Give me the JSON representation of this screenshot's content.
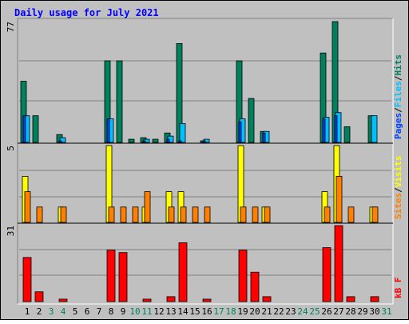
{
  "chart_data": {
    "type": "bar",
    "title": "Daily usage for July 2021",
    "categories": [
      "1",
      "2",
      "3",
      "4",
      "5",
      "6",
      "7",
      "8",
      "9",
      "10",
      "11",
      "12",
      "13",
      "14",
      "15",
      "16",
      "17",
      "18",
      "19",
      "20",
      "21",
      "22",
      "23",
      "24",
      "25",
      "26",
      "27",
      "28",
      "29",
      "30",
      "31"
    ],
    "weekend_days": [
      3,
      4,
      10,
      11,
      17,
      18,
      24,
      25,
      31
    ],
    "panels": [
      {
        "id": "hits-panel",
        "max_label": "77",
        "ymax": 77,
        "right_label": [
          "Pages",
          "/",
          "Files",
          "/",
          "Hits"
        ],
        "series": [
          {
            "name": "Hits",
            "color": "#00805c",
            "values": [
              39,
              17,
              0,
              5,
              0,
              0,
              0,
              52,
              52,
              2,
              3,
              2,
              6,
              63,
              0,
              1,
              0,
              0,
              52,
              28,
              7,
              0,
              0,
              0,
              0,
              57,
              77,
              10,
              0,
              17,
              0
            ]
          },
          {
            "name": "Files",
            "color": "#00c0ff",
            "values": [
              17,
              0,
              0,
              3,
              0,
              0,
              0,
              15,
              0,
              0,
              2,
              0,
              4,
              12,
              0,
              2,
              0,
              0,
              15,
              0,
              7,
              0,
              0,
              0,
              0,
              16,
              19,
              0,
              0,
              17,
              0
            ]
          },
          {
            "name": "Pages",
            "color": "#0040ff",
            "values": [
              17,
              0,
              0,
              1,
              0,
              0,
              0,
              15,
              0,
              0,
              1,
              0,
              2,
              1,
              0,
              1,
              0,
              0,
              13,
              0,
              6,
              0,
              0,
              0,
              0,
              15,
              17,
              0,
              0,
              0,
              0
            ]
          }
        ]
      },
      {
        "id": "sites-panel",
        "max_label": "5",
        "ymax": 5,
        "right_label": [
          "Sites",
          "/",
          "Visits"
        ],
        "series": [
          {
            "name": "Visits",
            "color": "#ffff00",
            "values": [
              3,
              0,
              0,
              1,
              0,
              0,
              0,
              5,
              0,
              0,
              1,
              0,
              2,
              2,
              0,
              0,
              0,
              0,
              5,
              0,
              1,
              0,
              0,
              0,
              0,
              2,
              5,
              0,
              0,
              1,
              0
            ]
          },
          {
            "name": "Sites",
            "color": "#ff8000",
            "values": [
              2,
              1,
              0,
              1,
              0,
              0,
              0,
              1,
              1,
              1,
              2,
              0,
              1,
              1,
              1,
              1,
              0,
              0,
              1,
              1,
              1,
              0,
              0,
              0,
              0,
              1,
              3,
              1,
              0,
              1,
              0
            ]
          }
        ]
      },
      {
        "id": "kbytes-panel",
        "max_label": "31",
        "ymax": 31,
        "right_label": [
          "kB F"
        ],
        "series": [
          {
            "name": "kB F",
            "color": "#ff0000",
            "values": [
              18,
              4,
              0,
              1,
              0,
              0,
              0,
              21,
              20,
              0,
              1,
              0,
              2,
              24,
              0,
              1,
              0,
              0,
              21,
              12,
              2,
              0,
              0,
              0,
              0,
              22,
              31,
              2,
              0,
              2,
              0
            ]
          }
        ]
      }
    ]
  }
}
